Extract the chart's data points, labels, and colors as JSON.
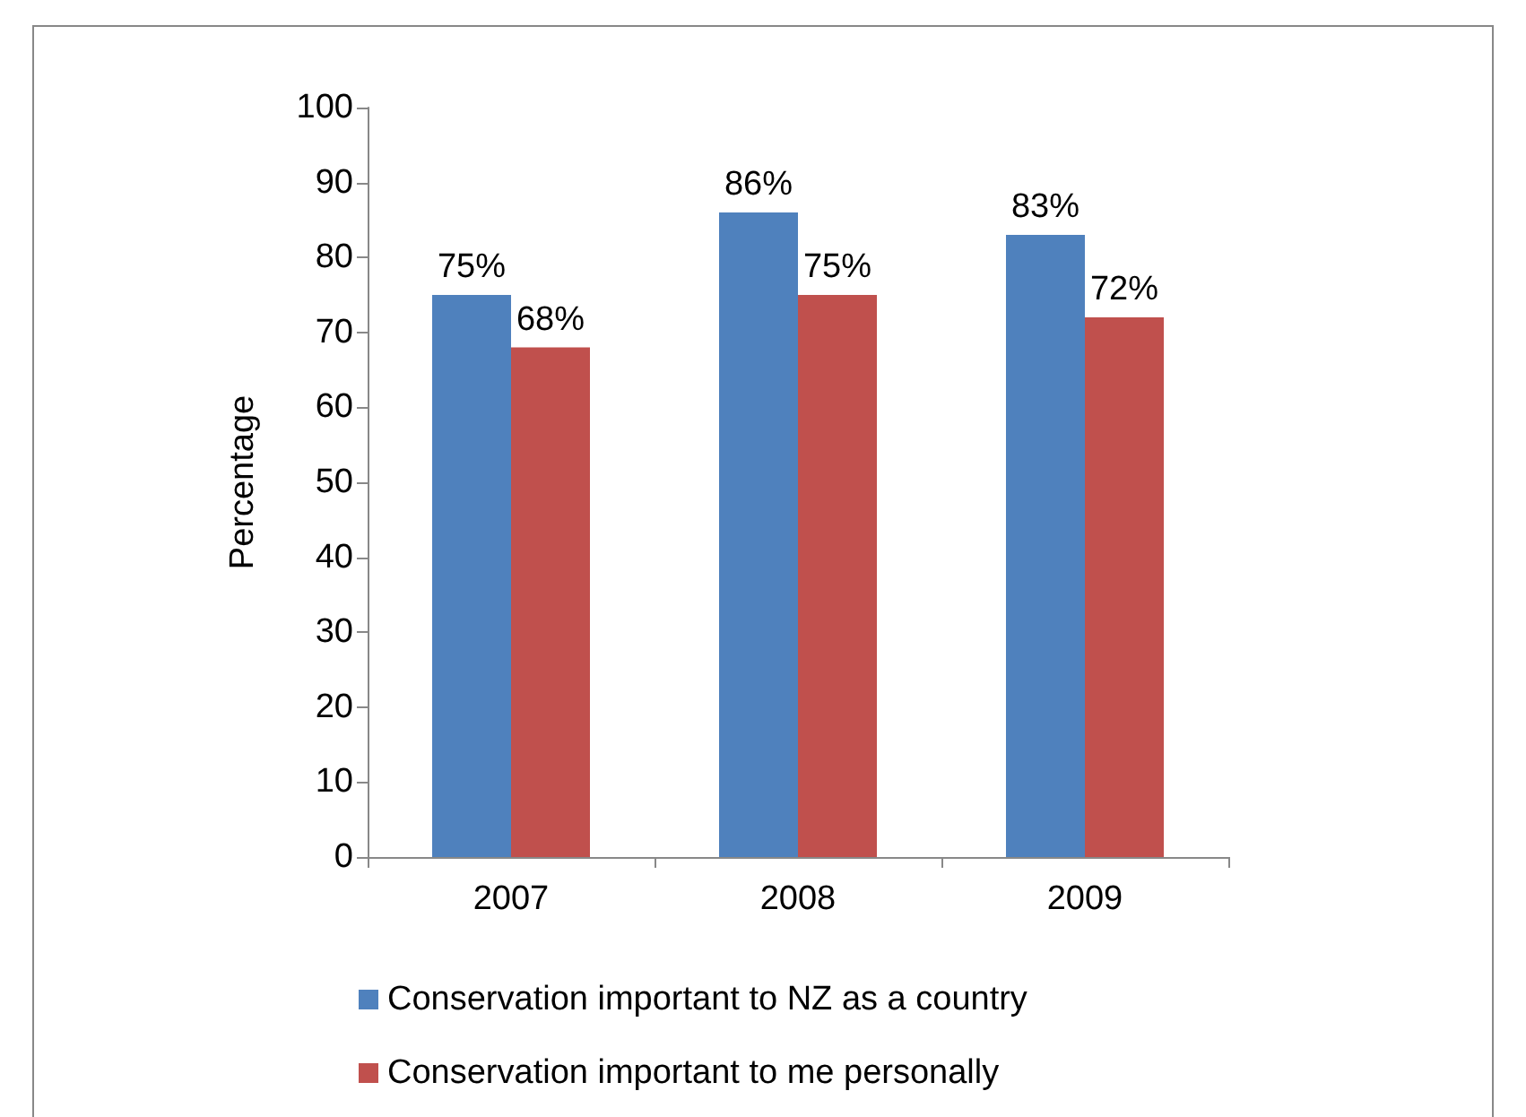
{
  "chart_data": {
    "type": "bar",
    "ylabel": "Percentage",
    "categories": [
      "2007",
      "2008",
      "2009"
    ],
    "series": [
      {
        "name": "Conservation important to NZ as a country",
        "color": "#4f81bd",
        "values": [
          75,
          86,
          83
        ],
        "value_labels": [
          "75%",
          "86%",
          "83%"
        ]
      },
      {
        "name": "Conservation important to me personally",
        "color": "#c0504d",
        "values": [
          68,
          75,
          72
        ],
        "value_labels": [
          "68%",
          "75%",
          "72%"
        ]
      }
    ],
    "ylim": [
      0,
      100
    ],
    "yticks": [
      0,
      10,
      20,
      30,
      40,
      50,
      60,
      70,
      80,
      90,
      100
    ],
    "grid": false,
    "legend": "bottom"
  }
}
